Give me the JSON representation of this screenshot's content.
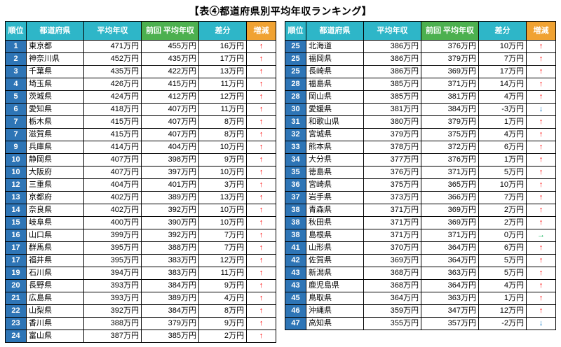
{
  "title": "【表④都道府県別平均年収ランキング】",
  "icons": {
    "up": "↑",
    "down": "↓",
    "flat": "→"
  },
  "colors": {
    "header_cyan": "#2eb6c8",
    "header_green": "#4cb04f",
    "header_orange": "#f0a232",
    "rank_blue": "#2e75b6",
    "arrow_up": "#ff0000",
    "arrow_down": "#0070c0",
    "arrow_flat": "#00b050",
    "border": "#000000"
  },
  "chart_data": {
    "type": "table",
    "title": "【表④都道府県別平均年収ランキング】",
    "columns": [
      "順位",
      "都道府県",
      "平均年収",
      "前回\n平均年収",
      "差分",
      "増減"
    ],
    "tables": [
      {
        "rows": [
          [
            "1",
            "東京都",
            "471万円",
            "455万円",
            "16万円",
            "up"
          ],
          [
            "2",
            "神奈川県",
            "452万円",
            "435万円",
            "17万円",
            "up"
          ],
          [
            "3",
            "千葉県",
            "435万円",
            "422万円",
            "13万円",
            "up"
          ],
          [
            "4",
            "埼玉県",
            "426万円",
            "415万円",
            "11万円",
            "up"
          ],
          [
            "5",
            "茨城県",
            "424万円",
            "412万円",
            "12万円",
            "up"
          ],
          [
            "6",
            "愛知県",
            "418万円",
            "407万円",
            "11万円",
            "up"
          ],
          [
            "7",
            "栃木県",
            "415万円",
            "407万円",
            "8万円",
            "up"
          ],
          [
            "7",
            "滋賀県",
            "415万円",
            "407万円",
            "8万円",
            "up"
          ],
          [
            "9",
            "兵庫県",
            "414万円",
            "404万円",
            "10万円",
            "up"
          ],
          [
            "10",
            "静岡県",
            "407万円",
            "398万円",
            "9万円",
            "up"
          ],
          [
            "10",
            "大阪府",
            "407万円",
            "397万円",
            "10万円",
            "up"
          ],
          [
            "12",
            "三重県",
            "404万円",
            "401万円",
            "3万円",
            "up"
          ],
          [
            "13",
            "京都府",
            "402万円",
            "389万円",
            "13万円",
            "up"
          ],
          [
            "14",
            "奈良県",
            "402万円",
            "392万円",
            "10万円",
            "up"
          ],
          [
            "15",
            "岐阜県",
            "400万円",
            "390万円",
            "10万円",
            "up"
          ],
          [
            "16",
            "山口県",
            "399万円",
            "392万円",
            "7万円",
            "up"
          ],
          [
            "17",
            "群馬県",
            "395万円",
            "388万円",
            "7万円",
            "up"
          ],
          [
            "17",
            "福井県",
            "395万円",
            "383万円",
            "12万円",
            "up"
          ],
          [
            "19",
            "石川県",
            "394万円",
            "383万円",
            "11万円",
            "up"
          ],
          [
            "20",
            "長野県",
            "393万円",
            "384万円",
            "9万円",
            "up"
          ],
          [
            "21",
            "広島県",
            "393万円",
            "389万円",
            "4万円",
            "up"
          ],
          [
            "22",
            "山梨県",
            "392万円",
            "384万円",
            "8万円",
            "up"
          ],
          [
            "23",
            "香川県",
            "388万円",
            "379万円",
            "9万円",
            "up"
          ],
          [
            "24",
            "富山県",
            "387万円",
            "385万円",
            "2万円",
            "up"
          ]
        ]
      },
      {
        "rows": [
          [
            "25",
            "北海道",
            "386万円",
            "376万円",
            "10万円",
            "up"
          ],
          [
            "25",
            "福岡県",
            "386万円",
            "379万円",
            "7万円",
            "up"
          ],
          [
            "25",
            "長崎県",
            "386万円",
            "369万円",
            "17万円",
            "up"
          ],
          [
            "28",
            "福島県",
            "385万円",
            "371万円",
            "14万円",
            "up"
          ],
          [
            "28",
            "岡山県",
            "385万円",
            "381万円",
            "4万円",
            "up"
          ],
          [
            "30",
            "愛媛県",
            "381万円",
            "384万円",
            "-3万円",
            "down"
          ],
          [
            "31",
            "和歌山県",
            "380万円",
            "379万円",
            "1万円",
            "up"
          ],
          [
            "32",
            "宮城県",
            "379万円",
            "375万円",
            "4万円",
            "up"
          ],
          [
            "33",
            "熊本県",
            "378万円",
            "372万円",
            "6万円",
            "up"
          ],
          [
            "34",
            "大分県",
            "377万円",
            "376万円",
            "1万円",
            "up"
          ],
          [
            "35",
            "徳島県",
            "376万円",
            "371万円",
            "5万円",
            "up"
          ],
          [
            "36",
            "宮崎県",
            "375万円",
            "365万円",
            "10万円",
            "up"
          ],
          [
            "37",
            "岩手県",
            "373万円",
            "366万円",
            "7万円",
            "up"
          ],
          [
            "38",
            "青森県",
            "371万円",
            "369万円",
            "2万円",
            "up"
          ],
          [
            "38",
            "秋田県",
            "371万円",
            "369万円",
            "2万円",
            "up"
          ],
          [
            "38",
            "島根県",
            "371万円",
            "371万円",
            "0万円",
            "flat"
          ],
          [
            "41",
            "山形県",
            "370万円",
            "364万円",
            "6万円",
            "up"
          ],
          [
            "42",
            "佐賀県",
            "369万円",
            "364万円",
            "5万円",
            "up"
          ],
          [
            "43",
            "新潟県",
            "368万円",
            "363万円",
            "5万円",
            "up"
          ],
          [
            "43",
            "鹿児島県",
            "368万円",
            "364万円",
            "4万円",
            "up"
          ],
          [
            "45",
            "鳥取県",
            "364万円",
            "363万円",
            "1万円",
            "up"
          ],
          [
            "46",
            "沖縄県",
            "359万円",
            "347万円",
            "12万円",
            "up"
          ],
          [
            "47",
            "高知県",
            "355万円",
            "357万円",
            "-2万円",
            "down"
          ]
        ]
      }
    ]
  }
}
